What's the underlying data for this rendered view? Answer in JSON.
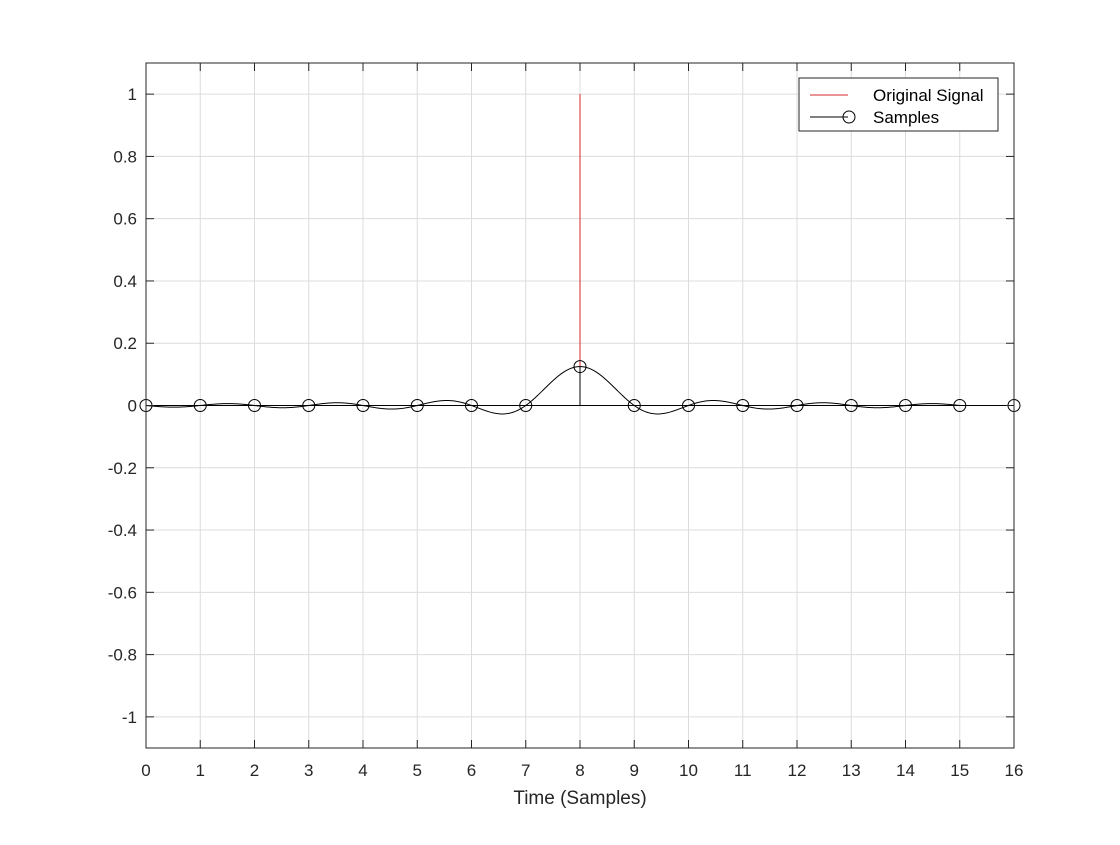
{
  "chart_data": {
    "type": "line",
    "title": "",
    "xlabel": "Time (Samples)",
    "ylabel": "",
    "xlim": [
      0,
      16
    ],
    "ylim": [
      -1.1,
      1.1
    ],
    "grid": true,
    "legend_placement": "top-right",
    "x_ticks": [
      "0",
      "1",
      "2",
      "3",
      "4",
      "5",
      "6",
      "7",
      "8",
      "9",
      "10",
      "11",
      "12",
      "13",
      "14",
      "15",
      "16"
    ],
    "y_ticks": [
      "-1",
      "-0.8",
      "-0.6",
      "-0.4",
      "-0.2",
      "0",
      "0.2",
      "0.4",
      "0.6",
      "0.8",
      "1"
    ],
    "series": [
      {
        "name": "Original Signal",
        "color": "#d62728",
        "style": "impulse",
        "x": [
          8
        ],
        "y": [
          1
        ]
      },
      {
        "name": "Samples",
        "color": "#000000",
        "style": "stem-with-circles",
        "x": [
          0,
          1,
          2,
          3,
          4,
          5,
          6,
          7,
          8,
          9,
          10,
          11,
          12,
          13,
          14,
          15,
          16
        ],
        "y": [
          0,
          0,
          0,
          0,
          0,
          0,
          0,
          0,
          0.125,
          0,
          0,
          0,
          0,
          0,
          0,
          0,
          0
        ]
      }
    ],
    "reconstruction_curve": {
      "color": "#000000",
      "center": 8,
      "amplitude": 0.125,
      "x_range": [
        0,
        15
      ]
    }
  }
}
